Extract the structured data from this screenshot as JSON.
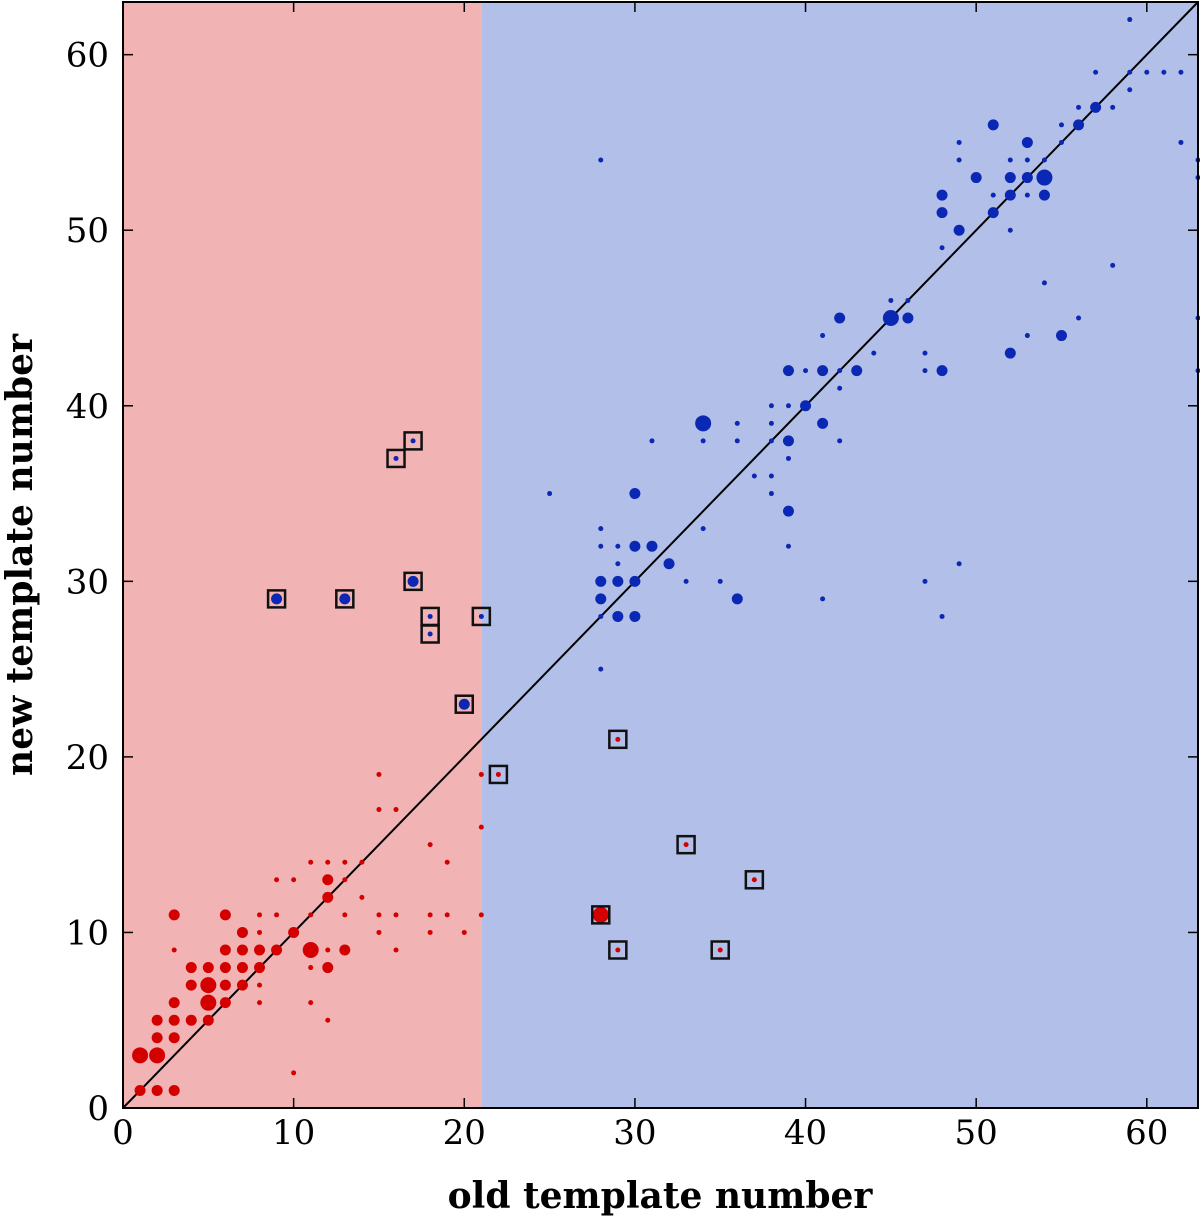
{
  "chart_data": {
    "type": "scatter",
    "xlabel": "old template number",
    "ylabel": "new template number",
    "xlim": [
      0,
      63
    ],
    "ylim": [
      0,
      63
    ],
    "xticks": [
      0,
      10,
      20,
      30,
      40,
      50,
      60
    ],
    "yticks": [
      0,
      10,
      20,
      30,
      40,
      50,
      60
    ],
    "regions": [
      {
        "name": "left-region",
        "x_from": 0,
        "x_to": 21,
        "color": "#f1b3b3"
      },
      {
        "name": "right-region",
        "x_from": 21,
        "x_to": 63,
        "color": "#b2bfe8"
      }
    ],
    "diagonal": {
      "from": [
        0,
        0
      ],
      "to": [
        63,
        63
      ],
      "color": "#000000"
    },
    "series": [
      {
        "name": "red-points",
        "color": "#d40000",
        "points": [
          [
            1,
            1,
            2
          ],
          [
            1,
            3,
            3
          ],
          [
            2,
            1,
            2
          ],
          [
            2,
            3,
            3
          ],
          [
            2,
            4,
            2
          ],
          [
            2,
            5,
            2
          ],
          [
            3,
            1,
            2
          ],
          [
            3,
            4,
            2
          ],
          [
            3,
            5,
            2
          ],
          [
            3,
            6,
            2
          ],
          [
            3,
            9,
            1
          ],
          [
            3,
            11,
            2
          ],
          [
            4,
            5,
            2
          ],
          [
            4,
            7,
            2
          ],
          [
            4,
            8,
            2
          ],
          [
            5,
            5,
            2
          ],
          [
            5,
            6,
            3
          ],
          [
            5,
            7,
            3
          ],
          [
            5,
            8,
            2
          ],
          [
            6,
            6,
            2
          ],
          [
            6,
            7,
            2
          ],
          [
            6,
            8,
            2
          ],
          [
            6,
            9,
            2
          ],
          [
            6,
            11,
            2
          ],
          [
            7,
            7,
            2
          ],
          [
            7,
            8,
            2
          ],
          [
            7,
            9,
            2
          ],
          [
            7,
            10,
            2
          ],
          [
            8,
            6,
            1
          ],
          [
            8,
            7,
            1
          ],
          [
            8,
            8,
            2
          ],
          [
            8,
            9,
            2
          ],
          [
            8,
            10,
            1
          ],
          [
            8,
            11,
            1
          ],
          [
            9,
            9,
            2
          ],
          [
            9,
            13,
            1
          ],
          [
            9,
            11,
            1
          ],
          [
            10,
            2,
            1
          ],
          [
            10,
            10,
            2
          ],
          [
            10,
            13,
            1
          ],
          [
            11,
            9,
            3
          ],
          [
            11,
            8,
            1
          ],
          [
            11,
            6,
            1
          ],
          [
            11,
            14,
            1
          ],
          [
            11,
            11,
            1
          ],
          [
            12,
            8,
            2
          ],
          [
            12,
            9,
            1
          ],
          [
            12,
            12,
            2
          ],
          [
            12,
            13,
            2
          ],
          [
            12,
            14,
            1
          ],
          [
            12,
            5,
            1
          ],
          [
            13,
            9,
            2
          ],
          [
            13,
            11,
            1
          ],
          [
            13,
            13,
            1
          ],
          [
            13,
            14,
            1
          ],
          [
            14,
            12,
            1
          ],
          [
            14,
            14,
            1
          ],
          [
            15,
            10,
            1
          ],
          [
            15,
            11,
            1
          ],
          [
            15,
            17,
            1
          ],
          [
            15,
            19,
            1
          ],
          [
            16,
            9,
            1
          ],
          [
            16,
            11,
            1
          ],
          [
            16,
            17,
            1
          ],
          [
            18,
            10,
            1
          ],
          [
            18,
            11,
            1
          ],
          [
            18,
            15,
            1
          ],
          [
            19,
            11,
            1
          ],
          [
            19,
            14,
            1
          ],
          [
            20,
            10,
            1
          ],
          [
            21,
            11,
            1
          ],
          [
            21,
            16,
            1
          ],
          [
            21,
            19,
            1
          ],
          [
            22,
            19,
            1
          ],
          [
            28,
            11,
            3
          ],
          [
            29,
            9,
            1
          ],
          [
            29,
            21,
            1
          ],
          [
            33,
            15,
            1
          ],
          [
            35,
            9,
            1
          ],
          [
            37,
            13,
            1
          ]
        ]
      },
      {
        "name": "blue-points",
        "color": "#0a28b4",
        "points": [
          [
            9,
            29,
            2
          ],
          [
            13,
            29,
            2
          ],
          [
            16,
            37,
            1
          ],
          [
            17,
            30,
            2
          ],
          [
            17,
            38,
            1
          ],
          [
            18,
            27,
            1
          ],
          [
            18,
            28,
            1
          ],
          [
            20,
            23,
            2
          ],
          [
            21,
            28,
            1
          ],
          [
            25,
            35,
            1
          ],
          [
            28,
            25,
            1
          ],
          [
            28,
            28,
            1
          ],
          [
            28,
            29,
            2
          ],
          [
            28,
            30,
            2
          ],
          [
            28,
            32,
            1
          ],
          [
            28,
            33,
            1
          ],
          [
            28,
            54,
            1
          ],
          [
            29,
            28,
            2
          ],
          [
            29,
            30,
            2
          ],
          [
            29,
            31,
            1
          ],
          [
            29,
            32,
            1
          ],
          [
            30,
            28,
            2
          ],
          [
            30,
            30,
            2
          ],
          [
            30,
            32,
            2
          ],
          [
            30,
            35,
            2
          ],
          [
            31,
            32,
            2
          ],
          [
            31,
            38,
            1
          ],
          [
            32,
            31,
            2
          ],
          [
            33,
            30,
            1
          ],
          [
            34,
            33,
            1
          ],
          [
            34,
            38,
            1
          ],
          [
            34,
            39,
            3
          ],
          [
            35,
            30,
            1
          ],
          [
            36,
            29,
            2
          ],
          [
            36,
            38,
            1
          ],
          [
            36,
            39,
            1
          ],
          [
            37,
            36,
            1
          ],
          [
            38,
            35,
            1
          ],
          [
            38,
            36,
            1
          ],
          [
            38,
            38,
            1
          ],
          [
            38,
            39,
            1
          ],
          [
            38,
            40,
            1
          ],
          [
            39,
            32,
            1
          ],
          [
            39,
            34,
            2
          ],
          [
            39,
            37,
            1
          ],
          [
            39,
            38,
            2
          ],
          [
            39,
            40,
            1
          ],
          [
            39,
            42,
            2
          ],
          [
            40,
            40,
            2
          ],
          [
            40,
            42,
            1
          ],
          [
            41,
            29,
            1
          ],
          [
            41,
            39,
            2
          ],
          [
            41,
            42,
            2
          ],
          [
            41,
            44,
            1
          ],
          [
            42,
            38,
            1
          ],
          [
            42,
            41,
            1
          ],
          [
            42,
            42,
            1
          ],
          [
            42,
            45,
            2
          ],
          [
            43,
            42,
            2
          ],
          [
            44,
            43,
            1
          ],
          [
            45,
            45,
            3
          ],
          [
            45,
            46,
            1
          ],
          [
            46,
            45,
            2
          ],
          [
            46,
            46,
            1
          ],
          [
            47,
            30,
            1
          ],
          [
            47,
            42,
            1
          ],
          [
            47,
            43,
            1
          ],
          [
            48,
            28,
            1
          ],
          [
            48,
            42,
            2
          ],
          [
            48,
            49,
            1
          ],
          [
            48,
            51,
            2
          ],
          [
            48,
            52,
            2
          ],
          [
            49,
            31,
            1
          ],
          [
            49,
            50,
            2
          ],
          [
            49,
            54,
            1
          ],
          [
            49,
            55,
            1
          ],
          [
            50,
            53,
            2
          ],
          [
            51,
            51,
            2
          ],
          [
            51,
            52,
            1
          ],
          [
            51,
            56,
            2
          ],
          [
            52,
            43,
            2
          ],
          [
            52,
            50,
            1
          ],
          [
            52,
            52,
            2
          ],
          [
            52,
            53,
            2
          ],
          [
            52,
            54,
            1
          ],
          [
            53,
            44,
            1
          ],
          [
            53,
            52,
            1
          ],
          [
            53,
            53,
            2
          ],
          [
            53,
            54,
            1
          ],
          [
            53,
            55,
            2
          ],
          [
            54,
            47,
            1
          ],
          [
            54,
            52,
            2
          ],
          [
            54,
            53,
            3
          ],
          [
            54,
            54,
            1
          ],
          [
            55,
            44,
            2
          ],
          [
            55,
            55,
            1
          ],
          [
            55,
            56,
            1
          ],
          [
            56,
            45,
            1
          ],
          [
            56,
            56,
            2
          ],
          [
            56,
            57,
            1
          ],
          [
            57,
            57,
            2
          ],
          [
            57,
            59,
            1
          ],
          [
            58,
            48,
            1
          ],
          [
            58,
            57,
            1
          ],
          [
            59,
            58,
            1
          ],
          [
            59,
            59,
            1
          ],
          [
            59,
            62,
            1
          ],
          [
            60,
            59,
            1
          ],
          [
            61,
            59,
            1
          ],
          [
            62,
            55,
            1
          ],
          [
            62,
            59,
            1
          ],
          [
            63,
            42,
            1
          ],
          [
            63,
            45,
            1
          ],
          [
            63,
            53,
            1
          ],
          [
            63,
            54,
            1
          ]
        ]
      }
    ],
    "boxed_points": [
      [
        9,
        29
      ],
      [
        13,
        29
      ],
      [
        16,
        37
      ],
      [
        17,
        30
      ],
      [
        17,
        38
      ],
      [
        18,
        27
      ],
      [
        18,
        28
      ],
      [
        20,
        23
      ],
      [
        21,
        28
      ],
      [
        22,
        19
      ],
      [
        28,
        11
      ],
      [
        29,
        9
      ],
      [
        29,
        21
      ],
      [
        33,
        15
      ],
      [
        35,
        9
      ],
      [
        37,
        13
      ]
    ]
  }
}
